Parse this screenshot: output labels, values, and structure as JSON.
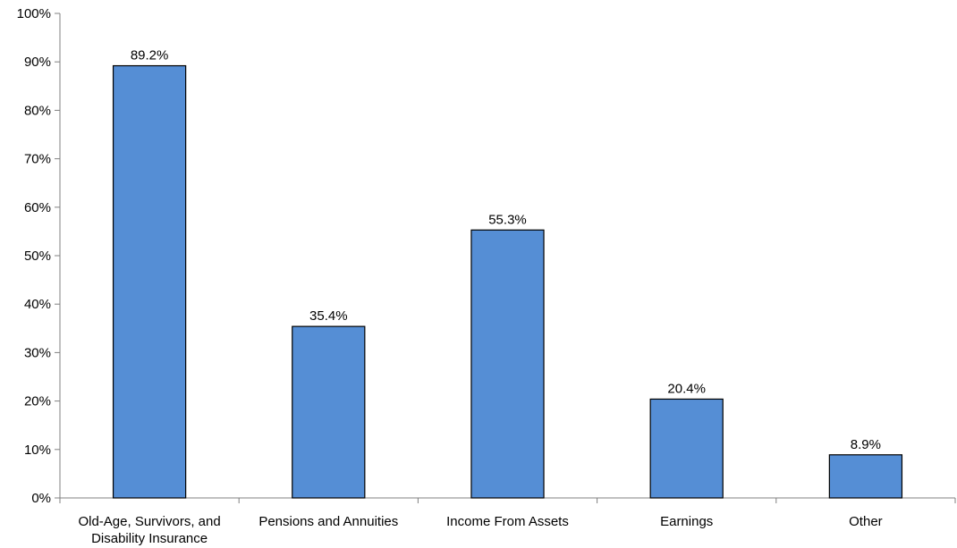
{
  "chart_data": {
    "type": "bar",
    "title": "",
    "xlabel": "",
    "ylabel": "",
    "categories": [
      [
        "Old-Age, Survivors, and",
        "Disability Insurance"
      ],
      [
        "Pensions and Annuities"
      ],
      [
        "Income From Assets"
      ],
      [
        "Earnings"
      ],
      [
        "Other"
      ]
    ],
    "values": [
      89.2,
      35.4,
      55.3,
      20.4,
      8.9
    ],
    "data_labels": [
      "89.2%",
      "35.4%",
      "55.3%",
      "20.4%",
      "8.9%"
    ],
    "ylim": [
      0,
      100
    ],
    "yticks": [
      0,
      10,
      20,
      30,
      40,
      50,
      60,
      70,
      80,
      90,
      100
    ],
    "ytick_labels": [
      "0%",
      "10%",
      "20%",
      "30%",
      "40%",
      "50%",
      "60%",
      "70%",
      "80%",
      "90%",
      "100%"
    ],
    "grid": false,
    "legend": "none",
    "colors": {
      "bar_fill": "#558ed5",
      "bar_stroke": "#000000",
      "axis": "#808080"
    }
  }
}
